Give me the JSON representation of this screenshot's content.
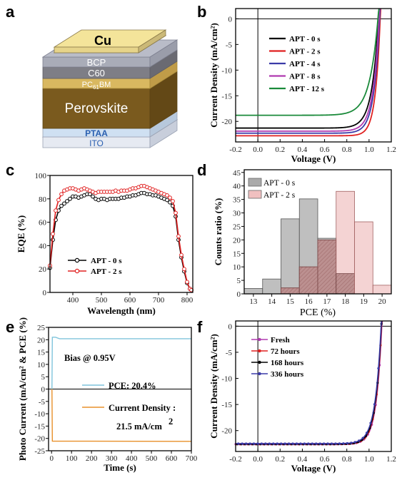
{
  "panels": {
    "a": {
      "label": "a",
      "layers": [
        "Cu",
        "BCP",
        "C60",
        "PC61BM",
        "Perovskite",
        "PTAA",
        "ITO"
      ]
    },
    "b": "b",
    "c": "c",
    "d": "d",
    "e": "e",
    "f": "f"
  },
  "chart_data": [
    {
      "id": "b",
      "type": "line",
      "xlabel": "Voltage (V)",
      "ylabel": "Current Density (mA/cm²)",
      "xlim": [
        -0.2,
        1.2
      ],
      "ylim": [
        -24,
        2
      ],
      "xticks": [
        "-0.2",
        "0.0",
        "0.2",
        "0.4",
        "0.6",
        "0.8",
        "1.0",
        "1.2"
      ],
      "yticks": [
        "0",
        "-5",
        "-10",
        "-15",
        "-20"
      ],
      "legend_position": "top-left",
      "series": [
        {
          "name": "APT - 0 s",
          "color": "#000000",
          "jsc": -21.3,
          "voc": 1.085,
          "n": 0.06
        },
        {
          "name": "APT - 2 s",
          "color": "#e02020",
          "jsc": -22.8,
          "voc": 1.1,
          "n": 0.044
        },
        {
          "name": "APT - 4 s",
          "color": "#3a3aa8",
          "jsc": -22.3,
          "voc": 1.095,
          "n": 0.052
        },
        {
          "name": "APT - 8 s",
          "color": "#b03ab0",
          "jsc": -21.9,
          "voc": 1.09,
          "n": 0.055
        },
        {
          "name": "APT - 12 s",
          "color": "#1a8a3a",
          "jsc": -18.8,
          "voc": 1.08,
          "n": 0.075
        }
      ]
    },
    {
      "id": "c",
      "type": "line",
      "xlabel": "Wavelength (nm)",
      "ylabel": "EQE (%)",
      "xlim": [
        320,
        820
      ],
      "ylim": [
        0,
        100
      ],
      "xticks": [
        "400",
        "500",
        "600",
        "700",
        "800"
      ],
      "yticks": [
        "0",
        "20",
        "40",
        "60",
        "80",
        "100"
      ],
      "legend_position": "bottom-center",
      "x": [
        320,
        330,
        340,
        350,
        360,
        370,
        380,
        390,
        400,
        410,
        420,
        430,
        440,
        450,
        460,
        470,
        480,
        490,
        500,
        510,
        520,
        530,
        540,
        550,
        560,
        570,
        580,
        590,
        600,
        610,
        620,
        630,
        640,
        650,
        660,
        670,
        680,
        690,
        700,
        710,
        720,
        730,
        740,
        750,
        760,
        770,
        780,
        790,
        800,
        810,
        815
      ],
      "series": [
        {
          "name": "APT - 0 s",
          "color": "#000000",
          "marker": "open-circle",
          "values": [
            21,
            45,
            62,
            70,
            74,
            76,
            78,
            80,
            82,
            82,
            81,
            82,
            83,
            84,
            84,
            82,
            80,
            79,
            80,
            80,
            79,
            80,
            80,
            80,
            80,
            81,
            81,
            82,
            82,
            83,
            83,
            84,
            85,
            85,
            84,
            84,
            83,
            83,
            82,
            81,
            80,
            79,
            77,
            74,
            65,
            45,
            30,
            18,
            8,
            3,
            2
          ]
        },
        {
          "name": "APT - 2 s",
          "color": "#e02020",
          "marker": "open-circle",
          "values": [
            23,
            50,
            70,
            79,
            84,
            87,
            88,
            89,
            89,
            88,
            87,
            88,
            89,
            88,
            87,
            86,
            85,
            86,
            86,
            86,
            86,
            86,
            86,
            87,
            86,
            87,
            87,
            87,
            88,
            89,
            89,
            90,
            91,
            91,
            90,
            89,
            88,
            87,
            86,
            85,
            84,
            83,
            81,
            78,
            68,
            48,
            32,
            20,
            9,
            3,
            2
          ]
        }
      ]
    },
    {
      "id": "d",
      "type": "bar",
      "xlabel": "PCE (%)",
      "ylabel": "Counts ratio (%)",
      "xlim": [
        12.5,
        20.5
      ],
      "ylim": [
        0,
        46
      ],
      "xticks": [
        "13",
        "14",
        "15",
        "16",
        "17",
        "18",
        "19",
        "20"
      ],
      "yticks": [
        "0",
        "5",
        "10",
        "15",
        "20",
        "25",
        "30",
        "35",
        "40",
        "45"
      ],
      "legend_position": "top-left",
      "categories": [
        13,
        14,
        15,
        16,
        17,
        18,
        19,
        20
      ],
      "series": [
        {
          "name": "APT - 0 s",
          "color": "#aaaaaa",
          "values": [
            2,
            5.5,
            27.8,
            35.2,
            20.6,
            7.5,
            0,
            0
          ]
        },
        {
          "name": "APT - 2 s",
          "color": "#f0c0c0",
          "values": [
            0,
            0,
            2.2,
            10,
            20,
            38,
            26.7,
            3.2
          ]
        }
      ]
    },
    {
      "id": "e",
      "type": "line",
      "xlabel": "Time (s)",
      "ylabel": "Photo Current (mA/cm² & PCE (%)",
      "xlim": [
        -15,
        700
      ],
      "ylim": [
        -25,
        25
      ],
      "xticks": [
        "0",
        "100",
        "200",
        "300",
        "400",
        "500",
        "600",
        "700"
      ],
      "yticks": [
        "25",
        "20",
        "15",
        "10",
        "5",
        "0",
        "-5",
        "-10",
        "-15",
        "-20",
        "-25"
      ],
      "annotations": {
        "bias": "Bias @ 0.95V",
        "pce": "PCE: 20.4%",
        "current_label": "Current Density :",
        "current_value": "21.5 mA/cm",
        "current_sup": "2"
      },
      "series": [
        {
          "name": "PCE",
          "color": "#7fc4dc",
          "steady": 20.4
        },
        {
          "name": "Current Density",
          "color": "#e8902a",
          "steady": -21.5
        }
      ]
    },
    {
      "id": "f",
      "type": "line",
      "xlabel": "Voltage (V)",
      "ylabel": "Current Density (mA/cm²)",
      "xlim": [
        -0.2,
        1.2
      ],
      "ylim": [
        -24,
        1
      ],
      "xticks": [
        "-0.2",
        "0.0",
        "0.2",
        "0.4",
        "0.6",
        "0.8",
        "1.0",
        "1.2"
      ],
      "yticks": [
        "0",
        "-5",
        "-10",
        "-15",
        "-20"
      ],
      "legend_position": "top-left",
      "series": [
        {
          "name": "Fresh",
          "color": "#b03ab0",
          "jsc": -22.6,
          "voc": 1.115,
          "n": 0.05
        },
        {
          "name": "72 hours",
          "color": "#e02020",
          "jsc": -22.6,
          "voc": 1.112,
          "n": 0.051
        },
        {
          "name": "168 hours",
          "color": "#000000",
          "jsc": -22.6,
          "voc": 1.11,
          "n": 0.052
        },
        {
          "name": "336 hours",
          "color": "#3a3aa8",
          "jsc": -22.5,
          "voc": 1.108,
          "n": 0.054
        }
      ]
    }
  ]
}
